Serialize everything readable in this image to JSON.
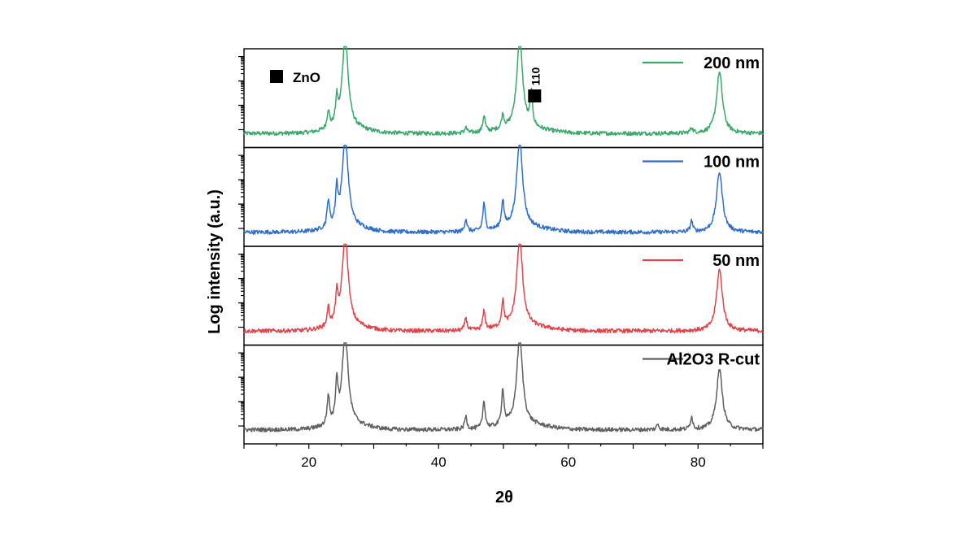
{
  "chart_data": {
    "type": "line",
    "xlabel": "2θ",
    "ylabel": "Log intensity (a.u.)",
    "xlim": [
      10,
      90
    ],
    "x_ticks": [
      20,
      40,
      60,
      80
    ],
    "y_scale": "log",
    "y_tick_labels": "none",
    "legend_placement": "top-right of each panel",
    "marker_legend": {
      "symbol": "filled-square",
      "label": "ZnO"
    },
    "peak_annotation": {
      "label": "110",
      "x": 54.3,
      "panel": "200 nm"
    },
    "series": [
      {
        "name": "200 nm",
        "color": "#3aa86b",
        "baseline": 0.1,
        "peaks": [
          {
            "x": 23.0,
            "h": 0.2
          },
          {
            "x": 24.3,
            "h": 0.27
          },
          {
            "x": 25.6,
            "h": 1.0
          },
          {
            "x": 44.2,
            "h": 0.06
          },
          {
            "x": 47.0,
            "h": 0.18
          },
          {
            "x": 49.9,
            "h": 0.15
          },
          {
            "x": 52.5,
            "h": 0.98
          },
          {
            "x": 54.3,
            "h": 0.35
          },
          {
            "x": 79.0,
            "h": 0.06
          },
          {
            "x": 83.3,
            "h": 0.67
          }
        ]
      },
      {
        "name": "100 nm",
        "color": "#2f6fcb",
        "baseline": 0.1,
        "peaks": [
          {
            "x": 23.0,
            "h": 0.3
          },
          {
            "x": 24.3,
            "h": 0.38
          },
          {
            "x": 25.6,
            "h": 1.0
          },
          {
            "x": 44.2,
            "h": 0.14
          },
          {
            "x": 47.0,
            "h": 0.3
          },
          {
            "x": 49.9,
            "h": 0.3
          },
          {
            "x": 52.5,
            "h": 0.96
          },
          {
            "x": 79.0,
            "h": 0.12
          },
          {
            "x": 83.3,
            "h": 0.66
          }
        ]
      },
      {
        "name": "50 nm",
        "color": "#e0454c",
        "baseline": 0.1,
        "peaks": [
          {
            "x": 23.0,
            "h": 0.2
          },
          {
            "x": 24.3,
            "h": 0.3
          },
          {
            "x": 25.6,
            "h": 1.0
          },
          {
            "x": 44.2,
            "h": 0.14
          },
          {
            "x": 47.0,
            "h": 0.2
          },
          {
            "x": 49.9,
            "h": 0.28
          },
          {
            "x": 52.5,
            "h": 0.96
          },
          {
            "x": 83.3,
            "h": 0.67
          }
        ]
      },
      {
        "name": "Al2O3 R-cut",
        "color": "#606060",
        "baseline": 0.1,
        "peaks": [
          {
            "x": 23.0,
            "h": 0.32
          },
          {
            "x": 24.3,
            "h": 0.44
          },
          {
            "x": 25.6,
            "h": 1.0
          },
          {
            "x": 44.2,
            "h": 0.14
          },
          {
            "x": 47.0,
            "h": 0.3
          },
          {
            "x": 49.9,
            "h": 0.39
          },
          {
            "x": 52.5,
            "h": 0.96
          },
          {
            "x": 73.8,
            "h": 0.06
          },
          {
            "x": 79.0,
            "h": 0.14
          },
          {
            "x": 83.3,
            "h": 0.66
          }
        ]
      }
    ]
  }
}
